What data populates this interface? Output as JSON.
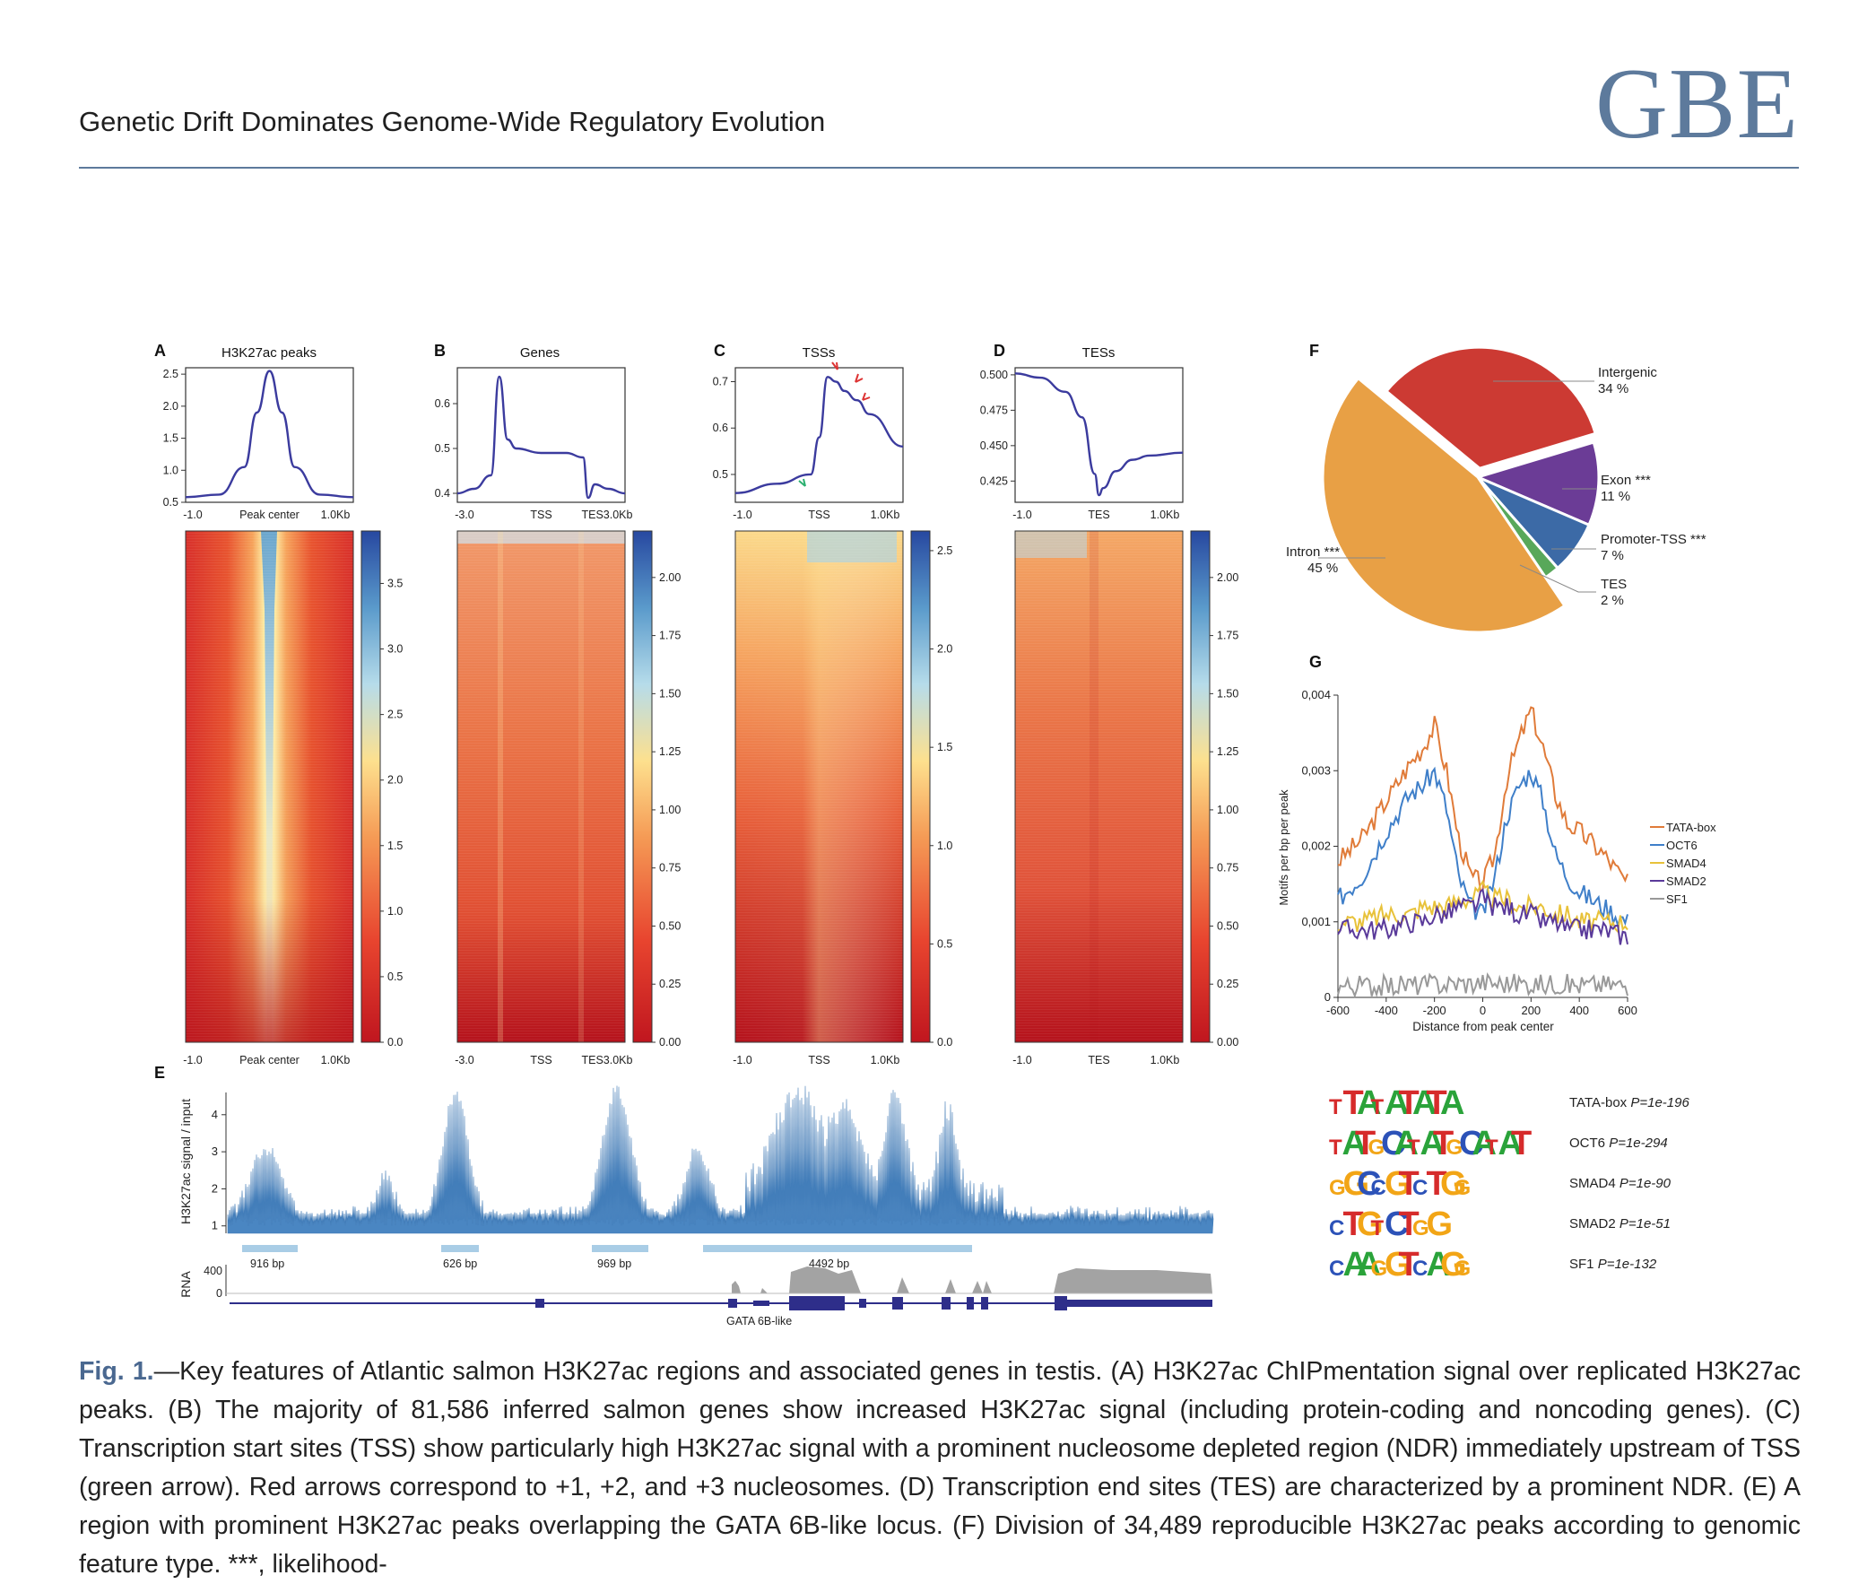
{
  "header": {
    "running_title": "Genetic Drift Dominates Genome-Wide Regulatory Evolution",
    "journal": "GBE"
  },
  "panels": {
    "A": {
      "letter": "A",
      "title": "H3K27ac peaks",
      "yticks": [
        "2.5",
        "2.0",
        "1.5",
        "1.0",
        "0.5"
      ],
      "xticks": [
        "-1.0",
        "Peak center",
        "1.0Kb"
      ],
      "cbar": [
        "3.5",
        "3.0",
        "2.5",
        "2.0",
        "1.5",
        "1.0",
        "0.5",
        "0.0"
      ]
    },
    "B": {
      "letter": "B",
      "title": "Genes",
      "yticks": [
        "0.6",
        "0.5",
        "0.4"
      ],
      "xticks": [
        "-3.0",
        "TSS",
        "TES3.0Kb"
      ],
      "cbar": [
        "2.00",
        "1.75",
        "1.50",
        "1.25",
        "1.00",
        "0.75",
        "0.50",
        "0.25",
        "0.00"
      ]
    },
    "C": {
      "letter": "C",
      "title": "TSSs",
      "yticks": [
        "0.7",
        "0.6",
        "0.5"
      ],
      "xticks": [
        "-1.0",
        "TSS",
        "1.0Kb"
      ],
      "cbar": [
        "2.5",
        "2.0",
        "1.5",
        "1.0",
        "0.5",
        "0.0"
      ]
    },
    "D": {
      "letter": "D",
      "title": "TESs",
      "yticks": [
        "0.500",
        "0.475",
        "0.450",
        "0.425"
      ],
      "xticks": [
        "-1.0",
        "TES",
        "1.0Kb"
      ],
      "cbar": [
        "2.00",
        "1.75",
        "1.50",
        "1.25",
        "1.00",
        "0.75",
        "0.50",
        "0.25",
        "0.00"
      ]
    },
    "E": {
      "letter": "E",
      "ylabel": "H3K27ac signal / input",
      "yticks": [
        "4",
        "3",
        "2",
        "1"
      ],
      "peak_widths": [
        "916 bp",
        "626 bp",
        "969 bp",
        "4492 bp"
      ],
      "rna_label": "RNA",
      "rna_ticks": [
        "400",
        "0"
      ],
      "gene_label": "GATA 6B-like"
    },
    "F": {
      "letter": "F"
    },
    "G": {
      "letter": "G",
      "ylabel": "Motifs per bp per peak",
      "xlabel": "Distance from peak center",
      "yticks": [
        "0,004",
        "0,003",
        "0,002",
        "0,001",
        "0"
      ],
      "xticks": [
        "-600",
        "-400",
        "-200",
        "0",
        "200",
        "400",
        "600"
      ]
    },
    "motifs": [
      {
        "logo": "TTATATATA",
        "name": "TATA-box",
        "p": "P=1e-196"
      },
      {
        "logo": "TATGCATATGCATAT",
        "name": "OCT6",
        "p": "P=1e-294"
      },
      {
        "logo": "GGCCGTCTGG",
        "name": "SMAD4",
        "p": "P=1e-90"
      },
      {
        "logo": "CTGTCTGG",
        "name": "SMAD2",
        "p": "P=1e-51"
      },
      {
        "logo": "CAAGGTCAGG",
        "name": "SF1",
        "p": "P=1e-132"
      }
    ]
  },
  "chart_data": [
    {
      "type": "pie",
      "panel": "F",
      "slices": [
        {
          "label": "Intergenic",
          "value": 34,
          "pct": "34 %",
          "color": "#cc3a33"
        },
        {
          "label": "Exon ***",
          "value": 11,
          "pct": "11 %",
          "color": "#6b3c96"
        },
        {
          "label": "Promoter-TSS ***",
          "value": 7,
          "pct": "7 %",
          "color": "#3c6aa6"
        },
        {
          "label": "TES",
          "value": 2,
          "pct": "2 %",
          "color": "#58a85a"
        },
        {
          "label": "Intron ***",
          "value": 45,
          "pct": "45 %",
          "color": "#e8a045"
        }
      ]
    },
    {
      "type": "line",
      "panel": "G",
      "xlim": [
        -600,
        600
      ],
      "ylim": [
        0,
        0.004
      ],
      "x": [
        -600,
        -500,
        -400,
        -300,
        -250,
        -200,
        -150,
        -100,
        -50,
        0,
        50,
        100,
        150,
        200,
        250,
        300,
        350,
        400,
        500,
        600
      ],
      "series": [
        {
          "name": "TATA-box",
          "color": "#e07b39",
          "values": [
            0.0018,
            0.0021,
            0.0026,
            0.0031,
            0.0033,
            0.0036,
            0.003,
            0.0021,
            0.0016,
            0.0015,
            0.0019,
            0.0029,
            0.0034,
            0.0038,
            0.0033,
            0.0027,
            0.0023,
            0.0022,
            0.0019,
            0.0015
          ]
        },
        {
          "name": "OCT6",
          "color": "#3f7fc9",
          "values": [
            0.0013,
            0.0016,
            0.0022,
            0.0027,
            0.0028,
            0.003,
            0.0025,
            0.0016,
            0.0012,
            0.0011,
            0.0016,
            0.0024,
            0.0028,
            0.003,
            0.0026,
            0.0019,
            0.0016,
            0.0014,
            0.0012,
            0.001
          ]
        },
        {
          "name": "SMAD4",
          "color": "#e8c23a",
          "values": [
            0.001,
            0.001,
            0.0011,
            0.0011,
            0.0012,
            0.0012,
            0.0012,
            0.0013,
            0.0013,
            0.0014,
            0.0013,
            0.0013,
            0.0012,
            0.0012,
            0.0012,
            0.0011,
            0.0011,
            0.001,
            0.001,
            0.001
          ]
        },
        {
          "name": "SMAD2",
          "color": "#5a3a9a",
          "values": [
            0.0009,
            0.0009,
            0.0009,
            0.001,
            0.001,
            0.0011,
            0.0011,
            0.0012,
            0.0012,
            0.0013,
            0.0012,
            0.0012,
            0.0011,
            0.0011,
            0.001,
            0.001,
            0.0009,
            0.0009,
            0.0009,
            0.0008
          ]
        },
        {
          "name": "SF1",
          "color": "#999999",
          "values": [
            0.00015,
            0.00016,
            0.00015,
            0.00017,
            0.00016,
            0.00018,
            0.00017,
            0.00019,
            0.00018,
            0.0002,
            0.00019,
            0.00018,
            0.00019,
            0.00018,
            0.00017,
            0.00018,
            0.00017,
            0.00016,
            0.00017,
            0.00016
          ]
        }
      ]
    },
    {
      "type": "line",
      "panel": "A",
      "x": [
        -1.0,
        -0.6,
        -0.3,
        -0.15,
        0,
        0.15,
        0.3,
        0.6,
        1.0
      ],
      "ylim": [
        0.5,
        2.6
      ],
      "series": [
        {
          "name": "",
          "color": "#3b3b9e",
          "values": [
            0.58,
            0.62,
            1.05,
            1.9,
            2.55,
            1.9,
            1.05,
            0.62,
            0.58
          ]
        }
      ]
    },
    {
      "type": "line",
      "panel": "B",
      "x": [
        0,
        0.1,
        0.2,
        0.25,
        0.3,
        0.35,
        0.5,
        0.65,
        0.75,
        0.78,
        0.82,
        0.9,
        1.0
      ],
      "ylim": [
        0.38,
        0.68
      ],
      "series": [
        {
          "name": "",
          "color": "#3b3b9e",
          "values": [
            0.4,
            0.41,
            0.44,
            0.66,
            0.52,
            0.5,
            0.49,
            0.49,
            0.48,
            0.39,
            0.42,
            0.41,
            0.4
          ]
        }
      ]
    },
    {
      "type": "line",
      "panel": "C",
      "x": [
        -1.0,
        -0.5,
        -0.1,
        0,
        0.1,
        0.2,
        0.3,
        0.45,
        0.6,
        1.0
      ],
      "ylim": [
        0.44,
        0.73
      ],
      "series": [
        {
          "name": "",
          "color": "#3b3b9e",
          "values": [
            0.46,
            0.48,
            0.5,
            0.58,
            0.71,
            0.7,
            0.68,
            0.66,
            0.63,
            0.56
          ]
        }
      ]
    },
    {
      "type": "line",
      "panel": "D",
      "x": [
        -1.0,
        -0.7,
        -0.4,
        -0.2,
        -0.05,
        0,
        0.05,
        0.2,
        0.4,
        0.6,
        1.0
      ],
      "ylim": [
        0.41,
        0.505
      ],
      "series": [
        {
          "name": "",
          "color": "#3b3b9e",
          "values": [
            0.501,
            0.498,
            0.488,
            0.47,
            0.43,
            0.415,
            0.42,
            0.432,
            0.44,
            0.443,
            0.445
          ]
        }
      ]
    }
  ],
  "caption": {
    "label": "Fig. 1.",
    "text": "—Key features of Atlantic salmon H3K27ac regions and associated genes in testis. (A) H3K27ac ChIPmentation signal over replicated H3K27ac peaks. (B) The majority of 81,586 inferred salmon genes show increased H3K27ac signal (including protein-coding and noncoding genes). (C) Transcription start sites (TSS) show particularly high H3K27ac signal with a prominent nucleosome depleted region (NDR) immediately upstream of TSS (green arrow). Red arrows correspond to +1, +2, and +3 nucleosomes. (D) Transcription end sites (TES) are characterized by a prominent NDR. (E) A region with prominent H3K27ac peaks overlapping the GATA 6B-like locus. (F) Division of 34,489 reproducible H3K27ac peaks according to genomic feature type. ***, likelihood-"
  }
}
